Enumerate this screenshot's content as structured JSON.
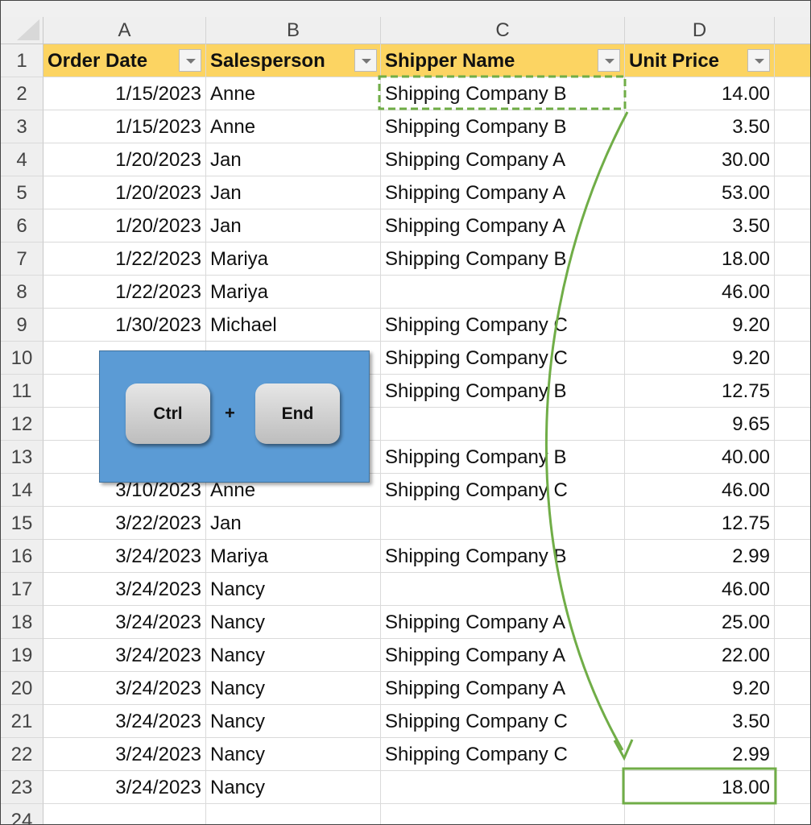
{
  "columns": [
    "A",
    "B",
    "C",
    "D",
    ""
  ],
  "header": {
    "row": "1",
    "cells": [
      "Order Date",
      "Salesperson",
      "Shipper Name",
      "Unit Price"
    ]
  },
  "rows": [
    {
      "n": "2",
      "a": "1/15/2023",
      "b": "Anne",
      "c": "Shipping Company B",
      "d": "14.00"
    },
    {
      "n": "3",
      "a": "1/15/2023",
      "b": "Anne",
      "c": "Shipping Company B",
      "d": "3.50"
    },
    {
      "n": "4",
      "a": "1/20/2023",
      "b": "Jan",
      "c": "Shipping Company A",
      "d": "30.00"
    },
    {
      "n": "5",
      "a": "1/20/2023",
      "b": "Jan",
      "c": "Shipping Company A",
      "d": "53.00"
    },
    {
      "n": "6",
      "a": "1/20/2023",
      "b": "Jan",
      "c": "Shipping Company A",
      "d": "3.50"
    },
    {
      "n": "7",
      "a": "1/22/2023",
      "b": "Mariya",
      "c": "Shipping Company B",
      "d": "18.00"
    },
    {
      "n": "8",
      "a": "1/22/2023",
      "b": "Mariya",
      "c": "",
      "d": "46.00"
    },
    {
      "n": "9",
      "a": "1/30/2023",
      "b": "Michael",
      "c": "Shipping Company C",
      "d": "9.20"
    },
    {
      "n": "10",
      "a": "",
      "b": "",
      "c": "Shipping Company C",
      "d": "9.20"
    },
    {
      "n": "11",
      "a": "",
      "b": "",
      "c": "Shipping Company B",
      "d": "12.75"
    },
    {
      "n": "12",
      "a": "",
      "b": "",
      "c": "",
      "d": "9.65"
    },
    {
      "n": "13",
      "a": "",
      "b": "",
      "c": "Shipping Company B",
      "d": "40.00"
    },
    {
      "n": "14",
      "a": "3/10/2023",
      "b": "Anne",
      "c": "Shipping Company C",
      "d": "46.00"
    },
    {
      "n": "15",
      "a": "3/22/2023",
      "b": "Jan",
      "c": "",
      "d": "12.75"
    },
    {
      "n": "16",
      "a": "3/24/2023",
      "b": "Mariya",
      "c": "Shipping Company B",
      "d": "2.99"
    },
    {
      "n": "17",
      "a": "3/24/2023",
      "b": "Nancy",
      "c": "",
      "d": "46.00"
    },
    {
      "n": "18",
      "a": "3/24/2023",
      "b": "Nancy",
      "c": "Shipping Company A",
      "d": "25.00"
    },
    {
      "n": "19",
      "a": "3/24/2023",
      "b": "Nancy",
      "c": "Shipping Company A",
      "d": "22.00"
    },
    {
      "n": "20",
      "a": "3/24/2023",
      "b": "Nancy",
      "c": "Shipping Company A",
      "d": "9.20"
    },
    {
      "n": "21",
      "a": "3/24/2023",
      "b": "Nancy",
      "c": "Shipping Company C",
      "d": "3.50"
    },
    {
      "n": "22",
      "a": "3/24/2023",
      "b": "Nancy",
      "c": "Shipping Company C",
      "d": "2.99"
    },
    {
      "n": "23",
      "a": "3/24/2023",
      "b": "Nancy",
      "c": "",
      "d": "18.00"
    },
    {
      "n": "24",
      "a": "",
      "b": "",
      "c": "",
      "d": ""
    }
  ],
  "shortcut": {
    "key1": "Ctrl",
    "plus": "+",
    "key2": "End"
  },
  "colors": {
    "header_fill": "#fcd462",
    "overlay": "#5b9bd5",
    "annotation": "#70ad47"
  }
}
